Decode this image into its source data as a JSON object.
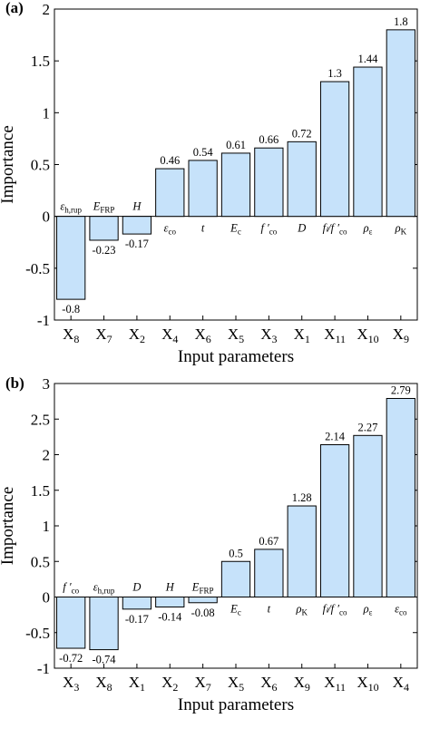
{
  "chart_data": [
    {
      "type": "bar",
      "panel_label": "(a)",
      "xlabel": "Input parameters",
      "ylabel": "Importance",
      "ylim": [
        -1,
        2
      ],
      "yticks": [
        "-1",
        "-0.5",
        "0",
        "0.5",
        "1",
        "1.5",
        "2"
      ],
      "ytick_values": [
        -1,
        -0.5,
        0,
        0.5,
        1,
        1.5,
        2
      ],
      "categories": [
        {
          "base": "X",
          "sub": "8"
        },
        {
          "base": "X",
          "sub": "7"
        },
        {
          "base": "X",
          "sub": "2"
        },
        {
          "base": "X",
          "sub": "4"
        },
        {
          "base": "X",
          "sub": "6"
        },
        {
          "base": "X",
          "sub": "5"
        },
        {
          "base": "X",
          "sub": "3"
        },
        {
          "base": "X",
          "sub": "1"
        },
        {
          "base": "X",
          "sub": "11"
        },
        {
          "base": "X",
          "sub": "10"
        },
        {
          "base": "X",
          "sub": "9"
        }
      ],
      "values": [
        -0.8,
        -0.23,
        -0.17,
        0.46,
        0.54,
        0.61,
        0.66,
        0.72,
        1.3,
        1.44,
        1.8
      ],
      "value_labels": [
        "-0.8",
        "-0.23",
        "-0.17",
        "0.46",
        "0.54",
        "0.61",
        "0.66",
        "0.72",
        "1.3",
        "1.44",
        "1.8"
      ],
      "parameter_labels": [
        {
          "main": "ε",
          "sub": "h,rup"
        },
        {
          "main": "E",
          "sub": "FRP"
        },
        {
          "main": "H",
          "sub": ""
        },
        {
          "main": "ε",
          "sub": "co"
        },
        {
          "main": "t",
          "sub": ""
        },
        {
          "main": "E",
          "sub": "c"
        },
        {
          "main": "f ′",
          "sub": "co"
        },
        {
          "main": "D",
          "sub": ""
        },
        {
          "main": "fₗ/f ′",
          "sub": "co"
        },
        {
          "main": "ρ",
          "sub": "ε"
        },
        {
          "main": "ρ",
          "sub": "K"
        }
      ],
      "bar_color": "#c6e2fa"
    },
    {
      "type": "bar",
      "panel_label": "(b)",
      "xlabel": "Input parameters",
      "ylabel": "Importance",
      "ylim": [
        -1,
        3
      ],
      "yticks": [
        "-1",
        "-0.5",
        "0",
        "0.5",
        "1",
        "1.5",
        "2",
        "2.5",
        "3"
      ],
      "ytick_values": [
        -1,
        -0.5,
        0,
        0.5,
        1,
        1.5,
        2,
        2.5,
        3
      ],
      "categories": [
        {
          "base": "X",
          "sub": "3"
        },
        {
          "base": "X",
          "sub": "8"
        },
        {
          "base": "X",
          "sub": "1"
        },
        {
          "base": "X",
          "sub": "2"
        },
        {
          "base": "X",
          "sub": "7"
        },
        {
          "base": "X",
          "sub": "5"
        },
        {
          "base": "X",
          "sub": "6"
        },
        {
          "base": "X",
          "sub": "9"
        },
        {
          "base": "X",
          "sub": "11"
        },
        {
          "base": "X",
          "sub": "10"
        },
        {
          "base": "X",
          "sub": "4"
        }
      ],
      "values": [
        -0.72,
        -0.74,
        -0.17,
        -0.14,
        -0.08,
        0.5,
        0.67,
        1.28,
        2.14,
        2.27,
        2.79
      ],
      "value_labels": [
        "-0.72",
        "-0.74",
        "-0.17",
        "-0.14",
        "-0.08",
        "0.5",
        "0.67",
        "1.28",
        "2.14",
        "2.27",
        "2.79"
      ],
      "parameter_labels": [
        {
          "main": "f ′",
          "sub": "co"
        },
        {
          "main": "ε",
          "sub": "h,rup"
        },
        {
          "main": "D",
          "sub": ""
        },
        {
          "main": "H",
          "sub": ""
        },
        {
          "main": "E",
          "sub": "FRP"
        },
        {
          "main": "E",
          "sub": "c"
        },
        {
          "main": "t",
          "sub": ""
        },
        {
          "main": "ρ",
          "sub": "K"
        },
        {
          "main": "fₗ/f ′",
          "sub": "co"
        },
        {
          "main": "ρ",
          "sub": "ε"
        },
        {
          "main": "ε",
          "sub": "co"
        }
      ],
      "bar_color": "#c6e2fa"
    }
  ]
}
